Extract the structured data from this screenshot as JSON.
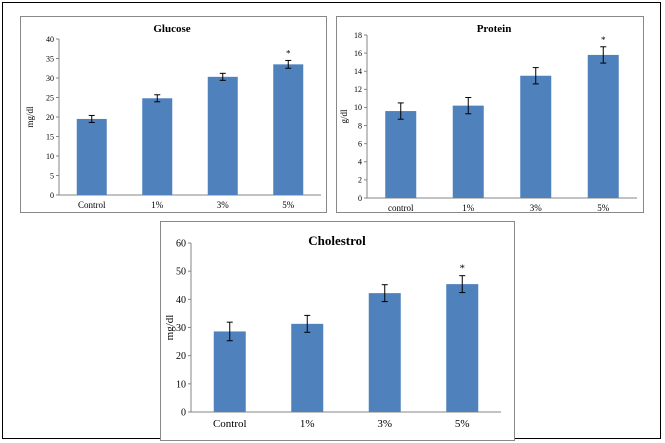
{
  "chart_data": [
    {
      "type": "bar",
      "title": "Glucose",
      "ylabel": "mg/dl",
      "xlabel": "",
      "categories": [
        "Control",
        "1%",
        "3%",
        "5%"
      ],
      "values": [
        19.5,
        24.8,
        30.3,
        33.5
      ],
      "errors": [
        0.9,
        0.9,
        0.9,
        1.0
      ],
      "significance": [
        "",
        "",
        "",
        "*"
      ],
      "yticks": [
        "0",
        "5",
        "10",
        "15",
        "20",
        "25",
        "30",
        "35",
        "40"
      ],
      "ylim": [
        0,
        40
      ]
    },
    {
      "type": "bar",
      "title": "Protein",
      "ylabel": "g/dl",
      "xlabel": "",
      "categories": [
        "control",
        "1%",
        "3%",
        "5%"
      ],
      "values": [
        9.6,
        10.2,
        13.5,
        15.8
      ],
      "errors": [
        0.9,
        0.9,
        0.9,
        0.9
      ],
      "significance": [
        "",
        "",
        "",
        "*"
      ],
      "yticks": [
        "0",
        "2",
        "4",
        "6",
        "8",
        "10",
        "12",
        "14",
        "16",
        "18"
      ],
      "ylim": [
        0,
        18
      ]
    },
    {
      "type": "bar",
      "title": "Cholestrol",
      "ylabel": "mg/dl",
      "xlabel": "",
      "categories": [
        "Control",
        "1%",
        "3%",
        "5%"
      ],
      "values": [
        28.6,
        31.3,
        42.2,
        45.4
      ],
      "errors": [
        3.3,
        3.0,
        3.0,
        3.0
      ],
      "significance": [
        "",
        "",
        "",
        "*"
      ],
      "yticks": [
        "0",
        "10",
        "20",
        "30",
        "40",
        "50",
        "60"
      ],
      "ylim": [
        0,
        60
      ]
    }
  ],
  "colors": {
    "bar": "#4f81bd",
    "axis": "#868686",
    "text": "#000000"
  }
}
